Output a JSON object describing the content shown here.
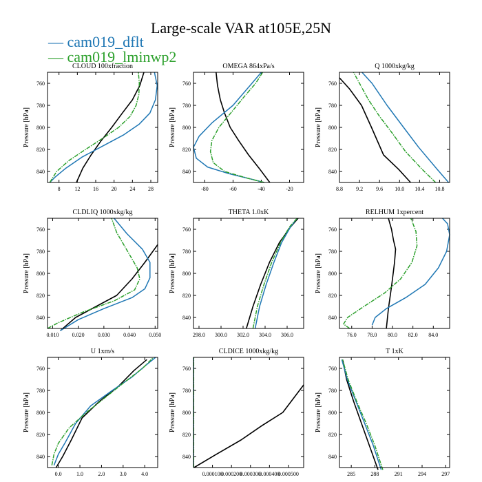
{
  "figure": {
    "title": "Large-scale VAR at105E,25N",
    "legend": [
      {
        "label": "cam019_dflt",
        "color": "#1f77b4",
        "dash": "—"
      },
      {
        "label": "cam019_lminwp2",
        "color": "#2ca02c",
        "dash": "—"
      }
    ],
    "ref_color": "#000000"
  },
  "chart_data": [
    {
      "type": "line",
      "title": "CLOUD  100xfraction",
      "ylabel": "Pressure [hPa]",
      "xlim": [
        5.5,
        29.5
      ],
      "ylim": [
        850,
        750
      ],
      "xticks": [
        8,
        12,
        16,
        20,
        24,
        28
      ],
      "xticklabels": [
        "8",
        "12",
        "16",
        "20",
        "24",
        "28"
      ],
      "yticks": [
        760,
        780,
        800,
        820,
        840
      ],
      "yticklabels": [
        "760",
        "780",
        "800",
        "820",
        "840"
      ],
      "series": [
        {
          "name": "ref",
          "x": [
            11.8,
            13.2,
            15.0,
            17.2,
            19.5,
            21.8,
            24.0,
            25.6,
            26.5
          ],
          "y": [
            850,
            837,
            825,
            812,
            800,
            787,
            775,
            762,
            750
          ]
        },
        {
          "name": "cam019_dflt",
          "x": [
            6.0,
            7.2,
            9.5,
            13.0,
            17.5,
            22.0,
            25.5,
            27.8,
            29.0,
            29.4,
            28.8
          ],
          "y": [
            850,
            845,
            837,
            827,
            817,
            807,
            797,
            787,
            775,
            762,
            750
          ]
        },
        {
          "name": "cam019_lminwp2",
          "x": [
            6.0,
            7.5,
            10.2,
            13.8,
            17.5,
            21.0,
            23.5,
            24.8,
            25.4,
            25.5,
            25.3
          ],
          "y": [
            850,
            840,
            830,
            820,
            810,
            800,
            790,
            780,
            770,
            760,
            750
          ]
        }
      ]
    },
    {
      "type": "line",
      "title": "OMEGA  864xPa/s",
      "ylabel": "Pressure [hPa]",
      "xlim": [
        -88,
        -10
      ],
      "ylim": [
        850,
        750
      ],
      "xticks": [
        -80,
        -60,
        -40,
        -20
      ],
      "xticklabels": [
        "-80",
        "-60",
        "-40",
        "-20"
      ],
      "yticks": [
        760,
        780,
        800,
        820,
        840
      ],
      "yticklabels": [
        "760",
        "780",
        "800",
        "820",
        "840"
      ],
      "series": [
        {
          "name": "ref",
          "x": [
            -34,
            -41,
            -49,
            -56,
            -62,
            -66,
            -69,
            -71,
            -72
          ],
          "y": [
            850,
            838,
            825,
            812,
            800,
            787,
            775,
            762,
            750
          ]
        },
        {
          "name": "cam019_dflt",
          "x": [
            -38,
            -47,
            -63,
            -78,
            -86,
            -88,
            -84,
            -75,
            -60,
            -48,
            -40
          ],
          "y": [
            850,
            847,
            842,
            836,
            828,
            818,
            808,
            796,
            780,
            762,
            750
          ]
        },
        {
          "name": "cam019_lminwp2",
          "x": [
            -38,
            -50,
            -66,
            -74,
            -76,
            -75,
            -70,
            -61,
            -52,
            -44,
            -39
          ],
          "y": [
            850,
            846,
            840,
            832,
            822,
            812,
            800,
            786,
            772,
            760,
            750
          ]
        }
      ]
    },
    {
      "type": "line",
      "title": "Q  1000xkg/kg",
      "ylabel": "Pressure [hPa]",
      "xlim": [
        8.8,
        11.0
      ],
      "ylim": [
        850,
        750
      ],
      "xticks": [
        8.8,
        9.2,
        9.6,
        10.0,
        10.4,
        10.8
      ],
      "xticklabels": [
        "8.8",
        "9.2",
        "9.6",
        "10.0",
        "10.4",
        "10.8"
      ],
      "yticks": [
        760,
        780,
        800,
        820,
        840
      ],
      "yticklabels": [
        "760",
        "780",
        "800",
        "820",
        "840"
      ],
      "series": [
        {
          "name": "ref",
          "x": [
            10.22,
            9.98,
            9.68,
            9.44,
            9.24,
            9.0,
            8.8
          ],
          "y": [
            850,
            838,
            825,
            800,
            780,
            765,
            755
          ]
        },
        {
          "name": "cam019_dflt",
          "x": [
            10.98,
            10.75,
            10.38,
            10.08,
            9.75,
            9.45,
            9.25
          ],
          "y": [
            850,
            838,
            818,
            800,
            780,
            760,
            750
          ]
        },
        {
          "name": "cam019_lminwp2",
          "x": [
            10.72,
            10.45,
            10.12,
            9.85,
            9.6,
            9.38,
            9.2,
            9.08
          ],
          "y": [
            850,
            838,
            822,
            805,
            790,
            775,
            760,
            750
          ]
        }
      ]
    },
    {
      "type": "line",
      "title": "CLDLIQ  1000xkg/kg",
      "ylabel": "Pressure [hPa]",
      "xlim": [
        0.008,
        0.051
      ],
      "ylim": [
        850,
        750
      ],
      "xticks": [
        0.01,
        0.02,
        0.03,
        0.04,
        0.05
      ],
      "xticklabels": [
        "0.010",
        "0.020",
        "0.030",
        "0.040",
        "0.050"
      ],
      "yticks": [
        760,
        780,
        800,
        820,
        840
      ],
      "yticklabels": [
        "760",
        "780",
        "800",
        "820",
        "840"
      ],
      "series": [
        {
          "name": "ref",
          "x": [
            0.013,
            0.019,
            0.027,
            0.035,
            0.041,
            0.046,
            0.051
          ],
          "y": [
            852,
            840,
            830,
            820,
            805,
            790,
            774
          ]
        },
        {
          "name": "cam019_dflt",
          "x": [
            0.013,
            0.02,
            0.03,
            0.041,
            0.046,
            0.048,
            0.048,
            0.045,
            0.039,
            0.034
          ],
          "y": [
            852,
            842,
            832,
            822,
            814,
            804,
            790,
            778,
            764,
            750
          ]
        },
        {
          "name": "cam019_lminwp2",
          "x": [
            0.008,
            0.012,
            0.022,
            0.034,
            0.042,
            0.044,
            0.043,
            0.04,
            0.035,
            0.033
          ],
          "y": [
            850,
            845,
            835,
            825,
            815,
            805,
            795,
            783,
            763,
            750
          ]
        }
      ]
    },
    {
      "type": "line",
      "title": "THETA  1.0xK",
      "ylabel": "Pressure [hPa]",
      "xlim": [
        297.5,
        307.5
      ],
      "ylim": [
        850,
        750
      ],
      "xticks": [
        298.0,
        300.0,
        302.0,
        304.0,
        306.0
      ],
      "xticklabels": [
        "298.0",
        "300.0",
        "302.0",
        "304.0",
        "306.0"
      ],
      "yticks": [
        760,
        780,
        800,
        820,
        840
      ],
      "yticklabels": [
        "760",
        "780",
        "800",
        "820",
        "840"
      ],
      "series": [
        {
          "name": "ref",
          "x": [
            302.3,
            302.9,
            303.6,
            304.4,
            305.3,
            306.3,
            307.0
          ],
          "y": [
            850,
            830,
            810,
            790,
            772,
            758,
            750
          ]
        },
        {
          "name": "cam019_dflt",
          "x": [
            303.1,
            303.5,
            304.1,
            304.8,
            305.5,
            306.3,
            306.9
          ],
          "y": [
            850,
            830,
            810,
            790,
            772,
            758,
            750
          ]
        },
        {
          "name": "cam019_lminwp2",
          "x": [
            302.9,
            303.3,
            303.9,
            304.6,
            305.4,
            306.2,
            306.9
          ],
          "y": [
            850,
            830,
            810,
            790,
            772,
            758,
            750
          ]
        }
      ]
    },
    {
      "type": "line",
      "title": "RELHUM  1xpercent",
      "ylabel": "Pressure [hPa]",
      "xlim": [
        74.8,
        85.6
      ],
      "ylim": [
        850,
        750
      ],
      "xticks": [
        76.0,
        78.0,
        80.0,
        82.0,
        84.0
      ],
      "xticklabels": [
        "76.0",
        "78.0",
        "80.0",
        "82.0",
        "84.0"
      ],
      "yticks": [
        760,
        780,
        800,
        820,
        840
      ],
      "yticklabels": [
        "760",
        "780",
        "800",
        "820",
        "840"
      ],
      "series": [
        {
          "name": "ref",
          "x": [
            79.4,
            79.6,
            79.9,
            80.2,
            80.3,
            80.1,
            79.9,
            79.6
          ],
          "y": [
            850,
            832,
            812,
            790,
            778,
            770,
            760,
            750
          ]
        },
        {
          "name": "cam019_dflt",
          "x": [
            78.0,
            78.3,
            79.4,
            81.3,
            83.2,
            84.5,
            85.3,
            85.6,
            85.4,
            84.9
          ],
          "y": [
            847,
            840,
            832,
            822,
            810,
            795,
            780,
            765,
            755,
            750
          ]
        },
        {
          "name": "cam019_lminwp2",
          "x": [
            75.8,
            75.2,
            75.6,
            77.2,
            79.2,
            80.8,
            81.9,
            82.4,
            82.3,
            81.8
          ],
          "y": [
            850,
            846,
            840,
            830,
            818,
            805,
            790,
            775,
            762,
            750
          ]
        }
      ]
    },
    {
      "type": "line",
      "title": "U  1xm/s",
      "ylabel": "Pressure [hPa]",
      "xlim": [
        -0.5,
        4.6
      ],
      "ylim": [
        850,
        750
      ],
      "xticks": [
        0.0,
        1.0,
        2.0,
        3.0,
        4.0
      ],
      "xticklabels": [
        "0.0",
        "1.0",
        "2.0",
        "3.0",
        "4.0"
      ],
      "yticks": [
        760,
        780,
        800,
        820,
        840
      ],
      "yticklabels": [
        "760",
        "780",
        "800",
        "820",
        "840"
      ],
      "series": [
        {
          "name": "ref",
          "x": [
            -0.1,
            0.2,
            0.6,
            1.1,
            1.9,
            2.8,
            3.5,
            4.1
          ],
          "y": [
            850,
            840,
            825,
            805,
            790,
            776,
            762,
            752
          ]
        },
        {
          "name": "cam019_dflt",
          "x": [
            -0.2,
            0.0,
            0.3,
            0.8,
            1.5,
            2.5,
            3.4,
            4.0,
            4.5
          ],
          "y": [
            848,
            838,
            828,
            810,
            794,
            780,
            768,
            758,
            750
          ]
        },
        {
          "name": "cam019_lminwp2",
          "x": [
            -0.3,
            -0.2,
            0.0,
            0.5,
            1.3,
            2.2,
            3.1,
            3.9,
            4.4
          ],
          "y": [
            848,
            838,
            828,
            814,
            800,
            786,
            772,
            760,
            750
          ]
        }
      ]
    },
    {
      "type": "line",
      "title": "CLDICE  1000xkg/kg",
      "ylabel": "Pressure [hPa]",
      "xlim": [
        0,
        0.00058
      ],
      "ylim": [
        850,
        750
      ],
      "xticks": [
        0.0001,
        0.0002,
        0.0003,
        0.0004,
        0.0005
      ],
      "xticklabels": [
        "0.000100",
        "0.000200",
        "0.000300",
        "0.000400",
        "0.000500"
      ],
      "yticks": [
        760,
        780,
        800,
        820,
        840
      ],
      "yticklabels": [
        "760",
        "780",
        "800",
        "820",
        "840"
      ],
      "series": [
        {
          "name": "ref",
          "x": [
            3e-06,
            0.00012,
            0.00025,
            0.00036,
            0.00047,
            0.00058
          ],
          "y": [
            850,
            838,
            825,
            812,
            800,
            775
          ]
        },
        {
          "name": "cam019_dflt",
          "x": [
            5e-07,
            5e-07
          ],
          "y": [
            850,
            750
          ]
        },
        {
          "name": "cam019_lminwp2",
          "x": [
            1e-06,
            1e-06
          ],
          "y": [
            850,
            750
          ]
        }
      ]
    },
    {
      "type": "line",
      "title": "T  1xK",
      "ylabel": "Pressure [hPa]",
      "xlim": [
        283.5,
        297.5
      ],
      "ylim": [
        850,
        750
      ],
      "xticks": [
        285,
        288,
        291,
        294,
        297
      ],
      "xticklabels": [
        "285",
        "288",
        "291",
        "294",
        "297"
      ],
      "yticks": [
        760,
        780,
        800,
        820,
        840
      ],
      "yticklabels": [
        "760",
        "780",
        "800",
        "820",
        "840"
      ],
      "series": [
        {
          "name": "ref",
          "x": [
            288.4,
            287.3,
            286.3,
            285.3,
            284.4,
            283.9
          ],
          "y": [
            852,
            830,
            810,
            790,
            770,
            752
          ]
        },
        {
          "name": "cam019_dflt",
          "x": [
            288.8,
            287.8,
            286.7,
            285.6,
            284.5,
            283.8
          ],
          "y": [
            852,
            830,
            810,
            790,
            770,
            752
          ]
        },
        {
          "name": "cam019_lminwp2",
          "x": [
            289.0,
            288.0,
            286.9,
            285.7,
            284.6,
            283.9
          ],
          "y": [
            852,
            830,
            810,
            790,
            770,
            752
          ]
        }
      ]
    }
  ]
}
